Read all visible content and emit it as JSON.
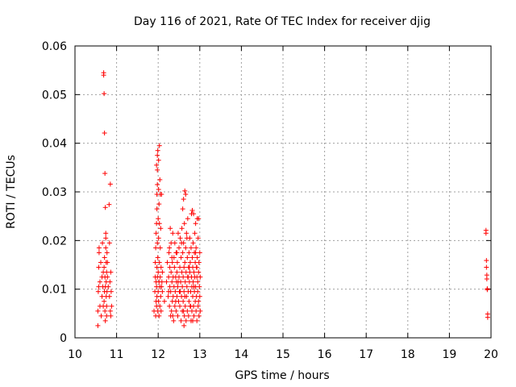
{
  "chart_data": {
    "type": "scatter",
    "title": "Day 116 of 2021, Rate Of TEC Index for receiver djig",
    "xlabel": "GPS time / hours",
    "ylabel": "ROTI / TECUs",
    "xlim": [
      10,
      20
    ],
    "ylim": [
      0,
      0.06
    ],
    "xticks": [
      10,
      11,
      12,
      13,
      14,
      15,
      16,
      17,
      18,
      19,
      20
    ],
    "xtick_labels": [
      "10",
      "11",
      "12",
      "13",
      "14",
      "15",
      "16",
      "17",
      "18",
      "19",
      "20"
    ],
    "yticks": [
      0,
      0.01,
      0.02,
      0.03,
      0.04,
      0.05,
      0.06
    ],
    "ytick_labels": [
      "0",
      "0.01",
      "0.02",
      "0.03",
      "0.04",
      "0.05",
      "0.06"
    ],
    "grid": true,
    "marker": "+",
    "color": "#ff0000",
    "series": [
      {
        "name": "ROTI",
        "points": [
          [
            10.55,
            0.0025
          ],
          [
            10.55,
            0.0055
          ],
          [
            10.56,
            0.0095
          ],
          [
            10.57,
            0.0105
          ],
          [
            10.57,
            0.0145
          ],
          [
            10.58,
            0.0175
          ],
          [
            10.58,
            0.0185
          ],
          [
            10.6,
            0.0065
          ],
          [
            10.6,
            0.0115
          ],
          [
            10.62,
            0.0155
          ],
          [
            10.63,
            0.0045
          ],
          [
            10.65,
            0.0085
          ],
          [
            10.65,
            0.0125
          ],
          [
            10.66,
            0.0195
          ],
          [
            10.67,
            0.0105
          ],
          [
            10.68,
            0.0065
          ],
          [
            10.68,
            0.0135
          ],
          [
            10.69,
            0.0545
          ],
          [
            10.69,
            0.054
          ],
          [
            10.7,
            0.0502
          ],
          [
            10.7,
            0.0075
          ],
          [
            10.7,
            0.0145
          ],
          [
            10.71,
            0.0421
          ],
          [
            10.71,
            0.0095
          ],
          [
            10.71,
            0.0165
          ],
          [
            10.72,
            0.0338
          ],
          [
            10.72,
            0.0055
          ],
          [
            10.72,
            0.0125
          ],
          [
            10.73,
            0.0268
          ],
          [
            10.73,
            0.0035
          ],
          [
            10.73,
            0.0105
          ],
          [
            10.74,
            0.0205
          ],
          [
            10.74,
            0.0215
          ],
          [
            10.74,
            0.0185
          ],
          [
            10.75,
            0.0155
          ],
          [
            10.75,
            0.0115
          ],
          [
            10.75,
            0.0085
          ],
          [
            10.76,
            0.0135
          ],
          [
            10.76,
            0.0065
          ],
          [
            10.76,
            0.0045
          ],
          [
            10.77,
            0.0175
          ],
          [
            10.77,
            0.0095
          ],
          [
            10.78,
            0.0125
          ],
          [
            10.78,
            0.0155
          ],
          [
            10.8,
            0.0105
          ],
          [
            10.82,
            0.0274
          ],
          [
            10.83,
            0.0195
          ],
          [
            10.83,
            0.0085
          ],
          [
            10.84,
            0.0115
          ],
          [
            10.85,
            0.0316
          ],
          [
            10.85,
            0.0055
          ],
          [
            10.86,
            0.0045
          ],
          [
            10.86,
            0.0135
          ],
          [
            10.87,
            0.0095
          ],
          [
            10.88,
            0.0065
          ],
          [
            11.9,
            0.0055
          ],
          [
            11.92,
            0.0095
          ],
          [
            11.93,
            0.0125
          ],
          [
            11.93,
            0.0155
          ],
          [
            11.94,
            0.0185
          ],
          [
            11.94,
            0.0045
          ],
          [
            11.95,
            0.0075
          ],
          [
            11.95,
            0.0115
          ],
          [
            11.95,
            0.0215
          ],
          [
            11.96,
            0.0235
          ],
          [
            11.96,
            0.0105
          ],
          [
            11.96,
            0.0065
          ],
          [
            11.96,
            0.0355
          ],
          [
            11.97,
            0.0265
          ],
          [
            11.97,
            0.0295
          ],
          [
            11.97,
            0.0145
          ],
          [
            11.97,
            0.0085
          ],
          [
            11.98,
            0.0375
          ],
          [
            11.98,
            0.0345
          ],
          [
            11.98,
            0.0315
          ],
          [
            11.98,
            0.0195
          ],
          [
            11.98,
            0.0125
          ],
          [
            11.99,
            0.0385
          ],
          [
            11.99,
            0.0055
          ],
          [
            11.99,
            0.0165
          ],
          [
            12.0,
            0.0245
          ],
          [
            12.0,
            0.0095
          ],
          [
            12.0,
            0.0135
          ],
          [
            12.01,
            0.0365
          ],
          [
            12.01,
            0.0305
          ],
          [
            12.01,
            0.0205
          ],
          [
            12.01,
            0.0075
          ],
          [
            12.02,
            0.0275
          ],
          [
            12.02,
            0.0115
          ],
          [
            12.02,
            0.0045
          ],
          [
            12.03,
            0.0395
          ],
          [
            12.03,
            0.0235
          ],
          [
            12.03,
            0.0155
          ],
          [
            12.04,
            0.0325
          ],
          [
            12.04,
            0.0105
          ],
          [
            12.04,
            0.0065
          ],
          [
            12.05,
            0.0295
          ],
          [
            12.05,
            0.0185
          ],
          [
            12.05,
            0.0125
          ],
          [
            12.06,
            0.0225
          ],
          [
            12.06,
            0.0085
          ],
          [
            12.07,
            0.0145
          ],
          [
            12.07,
            0.0055
          ],
          [
            12.08,
            0.0295
          ],
          [
            12.08,
            0.0105
          ],
          [
            12.09,
            0.0115
          ],
          [
            12.1,
            0.0095
          ],
          [
            12.1,
            0.0135
          ],
          [
            12.15,
            0.0075
          ],
          [
            12.2,
            0.0115
          ],
          [
            12.22,
            0.0155
          ],
          [
            12.24,
            0.0085
          ],
          [
            12.25,
            0.0125
          ],
          [
            12.26,
            0.0175
          ],
          [
            12.27,
            0.0185
          ],
          [
            12.27,
            0.0065
          ],
          [
            12.28,
            0.0105
          ],
          [
            12.28,
            0.0145
          ],
          [
            12.29,
            0.0225
          ],
          [
            12.3,
            0.0045
          ],
          [
            12.3,
            0.0095
          ],
          [
            12.31,
            0.0135
          ],
          [
            12.31,
            0.0195
          ],
          [
            12.32,
            0.0055
          ],
          [
            12.33,
            0.0115
          ],
          [
            12.34,
            0.0155
          ],
          [
            12.34,
            0.0075
          ],
          [
            12.35,
            0.0215
          ],
          [
            12.36,
            0.0125
          ],
          [
            12.36,
            0.0085
          ],
          [
            12.37,
            0.0035
          ],
          [
            12.38,
            0.0105
          ],
          [
            12.38,
            0.0165
          ],
          [
            12.39,
            0.0145
          ],
          [
            12.4,
            0.0065
          ],
          [
            12.4,
            0.0195
          ],
          [
            12.41,
            0.0095
          ],
          [
            12.42,
            0.0125
          ],
          [
            12.43,
            0.0055
          ],
          [
            12.43,
            0.0175
          ],
          [
            12.44,
            0.0115
          ],
          [
            12.45,
            0.0085
          ],
          [
            12.45,
            0.0135
          ],
          [
            12.46,
            0.0155
          ],
          [
            12.47,
            0.0045
          ],
          [
            12.47,
            0.0105
          ],
          [
            12.48,
            0.0215
          ],
          [
            12.49,
            0.0075
          ],
          [
            12.5,
            0.0125
          ],
          [
            12.5,
            0.0185
          ],
          [
            12.51,
            0.0095
          ],
          [
            12.52,
            0.0065
          ],
          [
            12.52,
            0.0145
          ],
          [
            12.53,
            0.0205
          ],
          [
            12.54,
            0.0115
          ],
          [
            12.55,
            0.0035
          ],
          [
            12.55,
            0.0165
          ],
          [
            12.56,
            0.0085
          ],
          [
            12.57,
            0.0135
          ],
          [
            12.57,
            0.0225
          ],
          [
            12.58,
            0.0055
          ],
          [
            12.58,
            0.0105
          ],
          [
            12.59,
            0.0265
          ],
          [
            12.59,
            0.0175
          ],
          [
            12.6,
            0.0125
          ],
          [
            12.6,
            0.0075
          ],
          [
            12.61,
            0.0285
          ],
          [
            12.61,
            0.0195
          ],
          [
            12.62,
            0.0025
          ],
          [
            12.62,
            0.0145
          ],
          [
            12.62,
            0.0095
          ],
          [
            12.63,
            0.0235
          ],
          [
            12.63,
            0.0045
          ],
          [
            12.64,
            0.0302
          ],
          [
            12.64,
            0.0155
          ],
          [
            12.65,
            0.0115
          ],
          [
            12.65,
            0.0065
          ],
          [
            12.66,
            0.0295
          ],
          [
            12.66,
            0.0185
          ],
          [
            12.67,
            0.0035
          ],
          [
            12.67,
            0.0135
          ],
          [
            12.68,
            0.0215
          ],
          [
            12.68,
            0.0085
          ],
          [
            12.69,
            0.0105
          ],
          [
            12.7,
            0.0165
          ],
          [
            12.7,
            0.0055
          ],
          [
            12.71,
            0.0245
          ],
          [
            12.71,
            0.0125
          ],
          [
            12.72,
            0.0095
          ],
          [
            12.73,
            0.0145
          ],
          [
            12.73,
            0.0045
          ],
          [
            12.74,
            0.0175
          ],
          [
            12.74,
            0.0075
          ],
          [
            12.75,
            0.0115
          ],
          [
            12.76,
            0.0205
          ],
          [
            12.76,
            0.0135
          ],
          [
            12.77,
            0.0065
          ],
          [
            12.77,
            0.0155
          ],
          [
            12.78,
            0.0095
          ],
          [
            12.79,
            0.0185
          ],
          [
            12.79,
            0.0035
          ],
          [
            12.8,
            0.0255
          ],
          [
            12.8,
            0.0125
          ],
          [
            12.81,
            0.0105
          ],
          [
            12.81,
            0.0055
          ],
          [
            12.82,
            0.0165
          ],
          [
            12.82,
            0.0262
          ],
          [
            12.83,
            0.0085
          ],
          [
            12.83,
            0.0145
          ],
          [
            12.84,
            0.0195
          ],
          [
            12.84,
            0.0115
          ],
          [
            12.85,
            0.0255
          ],
          [
            12.85,
            0.0065
          ],
          [
            12.86,
            0.0135
          ],
          [
            12.86,
            0.0045
          ],
          [
            12.87,
            0.0175
          ],
          [
            12.87,
            0.0095
          ],
          [
            12.88,
            0.0215
          ],
          [
            12.88,
            0.0125
          ],
          [
            12.89,
            0.0075
          ],
          [
            12.89,
            0.0155
          ],
          [
            12.9,
            0.0105
          ],
          [
            12.9,
            0.0235
          ],
          [
            12.91,
            0.0055
          ],
          [
            12.91,
            0.0185
          ],
          [
            12.92,
            0.0145
          ],
          [
            12.92,
            0.0085
          ],
          [
            12.93,
            0.0125
          ],
          [
            12.93,
            0.0035
          ],
          [
            12.94,
            0.0165
          ],
          [
            12.94,
            0.0245
          ],
          [
            12.95,
            0.0095
          ],
          [
            12.95,
            0.0115
          ],
          [
            12.96,
            0.0205
          ],
          [
            12.96,
            0.0065
          ],
          [
            12.97,
            0.0135
          ],
          [
            12.97,
            0.0245
          ],
          [
            12.98,
            0.0155
          ],
          [
            12.98,
            0.0045
          ],
          [
            12.99,
            0.0105
          ],
          [
            13.0,
            0.0085
          ],
          [
            13.0,
            0.0175
          ],
          [
            13.01,
            0.0125
          ],
          [
            13.01,
            0.0055
          ],
          [
            12.25,
            0.0095
          ],
          [
            12.33,
            0.0165
          ],
          [
            12.42,
            0.0075
          ],
          [
            12.48,
            0.0115
          ],
          [
            12.56,
            0.0195
          ],
          [
            12.64,
            0.0085
          ],
          [
            12.72,
            0.0125
          ],
          [
            12.78,
            0.0065
          ],
          [
            12.86,
            0.0105
          ],
          [
            12.93,
            0.0145
          ],
          [
            12.35,
            0.0045
          ],
          [
            12.45,
            0.0175
          ],
          [
            12.53,
            0.0095
          ],
          [
            12.61,
            0.0055
          ],
          [
            12.69,
            0.0205
          ],
          [
            12.75,
            0.0145
          ],
          [
            12.83,
            0.0035
          ],
          [
            12.9,
            0.0175
          ],
          [
            12.97,
            0.0075
          ],
          [
            19.88,
            0.0215
          ],
          [
            19.88,
            0.0221
          ],
          [
            19.89,
            0.0159
          ],
          [
            19.89,
            0.0145
          ],
          [
            19.9,
            0.0129
          ],
          [
            19.9,
            0.0121
          ],
          [
            19.91,
            0.0101
          ],
          [
            19.91,
            0.0099
          ],
          [
            19.92,
            0.0049
          ],
          [
            19.92,
            0.0042
          ]
        ]
      }
    ]
  }
}
